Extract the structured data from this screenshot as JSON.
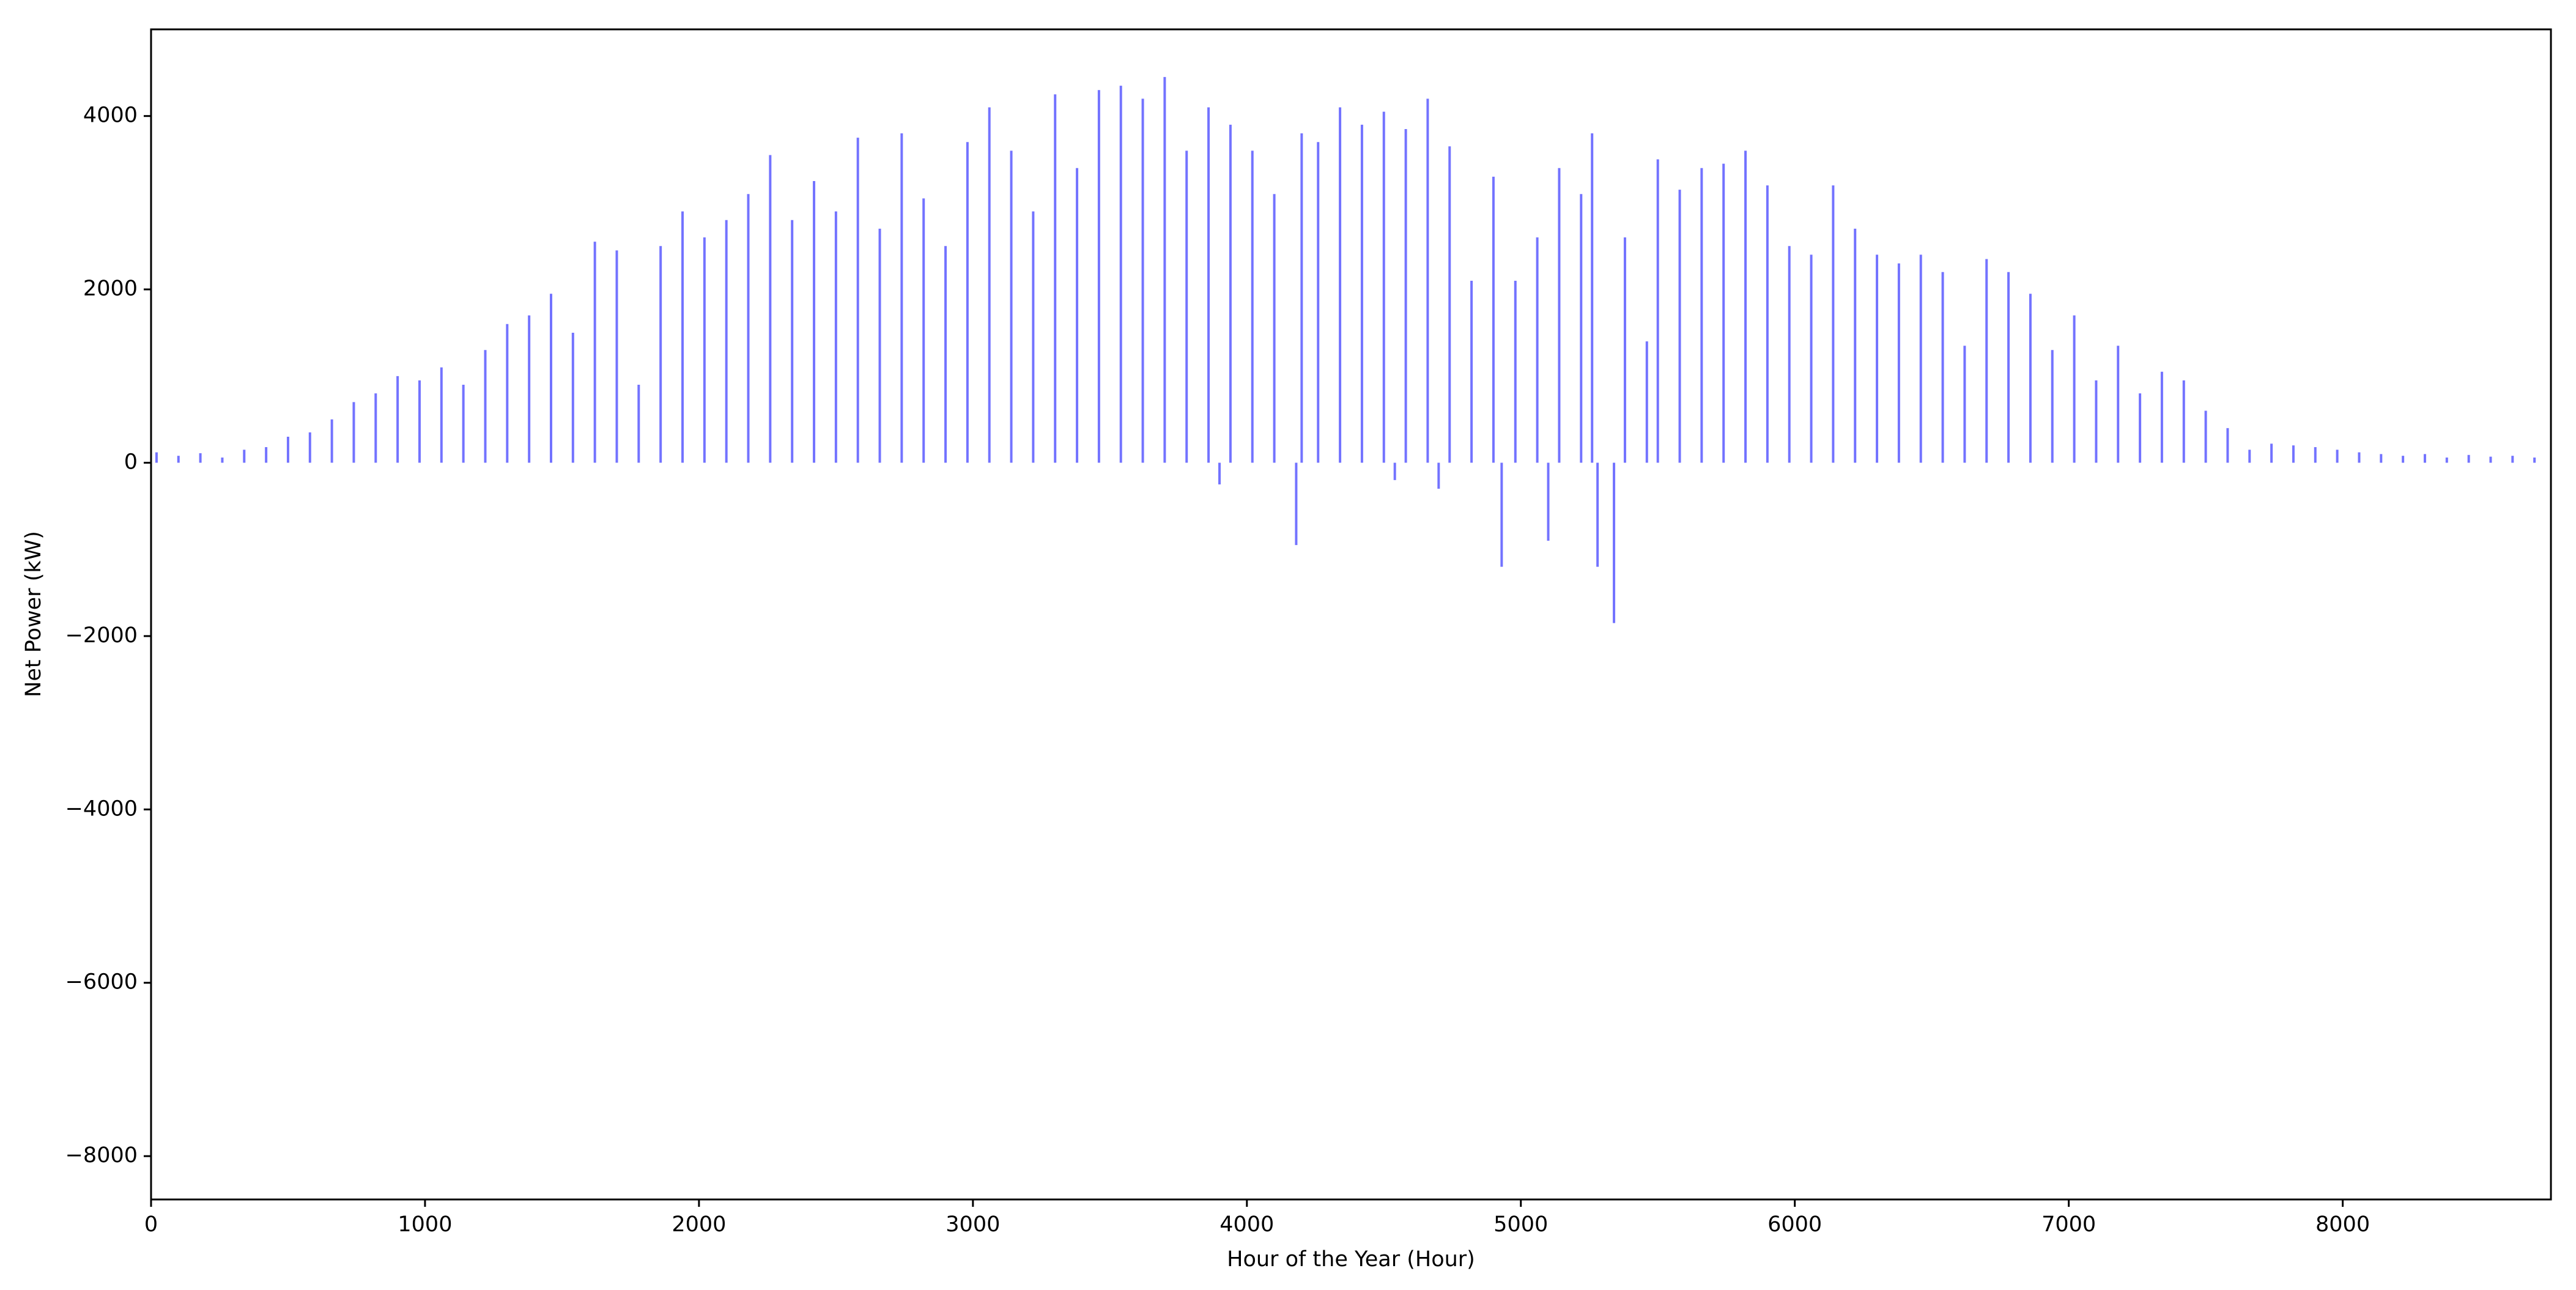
{
  "chart_data": {
    "type": "stem",
    "xlabel": "Hour of the Year (Hour)",
    "ylabel": "Net Power (kW)",
    "color": "#0000ff",
    "xlim": [
      0,
      8760
    ],
    "ylim": [
      -8500,
      5000
    ],
    "xticks": [
      0,
      1000,
      2000,
      3000,
      4000,
      5000,
      6000,
      7000,
      8000
    ],
    "yticks": [
      {
        "value": -8000,
        "label": "−8000"
      },
      {
        "value": -6000,
        "label": "−6000"
      },
      {
        "value": -4000,
        "label": "−4000"
      },
      {
        "value": -2000,
        "label": "−2000"
      },
      0,
      2000,
      4000
    ],
    "x": [
      20,
      100,
      180,
      260,
      340,
      420,
      500,
      580,
      660,
      740,
      820,
      900,
      980,
      1060,
      1140,
      1220,
      1300,
      1380,
      1460,
      1540,
      1620,
      1700,
      1780,
      1860,
      1940,
      2020,
      2100,
      2180,
      2260,
      2340,
      2420,
      2500,
      2580,
      2660,
      2740,
      2820,
      2900,
      2980,
      3060,
      3140,
      3220,
      3300,
      3380,
      3460,
      3540,
      3620,
      3700,
      3780,
      3860,
      3900,
      3940,
      4020,
      4100,
      4180,
      4200,
      4260,
      4340,
      4420,
      4500,
      4540,
      4580,
      4660,
      4700,
      4740,
      4820,
      4900,
      4930,
      4980,
      5060,
      5100,
      5140,
      5220,
      5260,
      5280,
      5340,
      5380,
      5460,
      5500,
      5580,
      5660,
      5740,
      5820,
      5900,
      5980,
      6060,
      6140,
      6220,
      6300,
      6380,
      6460,
      6540,
      6620,
      6700,
      6780,
      6860,
      6940,
      7020,
      7100,
      7180,
      7260,
      7340,
      7420,
      7500,
      7580,
      7660,
      7740,
      7820,
      7900,
      7980,
      8060,
      8140,
      8220,
      8300,
      8380,
      8460,
      8540,
      8620,
      8700
    ],
    "values": [
      120,
      80,
      110,
      60,
      150,
      180,
      300,
      350,
      500,
      700,
      800,
      1000,
      950,
      1100,
      900,
      1300,
      1600,
      1700,
      1950,
      1500,
      2550,
      2450,
      900,
      2500,
      2900,
      2600,
      2800,
      3100,
      3550,
      2800,
      3250,
      2900,
      3750,
      2700,
      3800,
      3050,
      2500,
      3700,
      4100,
      3600,
      2900,
      4250,
      3400,
      4300,
      4350,
      4200,
      4450,
      3600,
      4100,
      -250,
      3900,
      3600,
      3100,
      -950,
      3800,
      3700,
      4100,
      3900,
      4050,
      -200,
      3850,
      4200,
      -300,
      3650,
      2100,
      3300,
      -1200,
      2100,
      2600,
      -900,
      3400,
      3100,
      3800,
      -1200,
      -1850,
      2600,
      1400,
      3500,
      3150,
      3400,
      3450,
      3600,
      3200,
      2500,
      2400,
      3200,
      2700,
      2400,
      2300,
      2400,
      2200,
      1350,
      2350,
      2200,
      1950,
      1300,
      1700,
      950,
      1350,
      800,
      1050,
      950,
      600,
      400,
      150,
      220,
      200,
      180,
      150,
      120,
      100,
      80,
      100,
      60,
      90,
      70,
      80,
      60
    ]
  }
}
